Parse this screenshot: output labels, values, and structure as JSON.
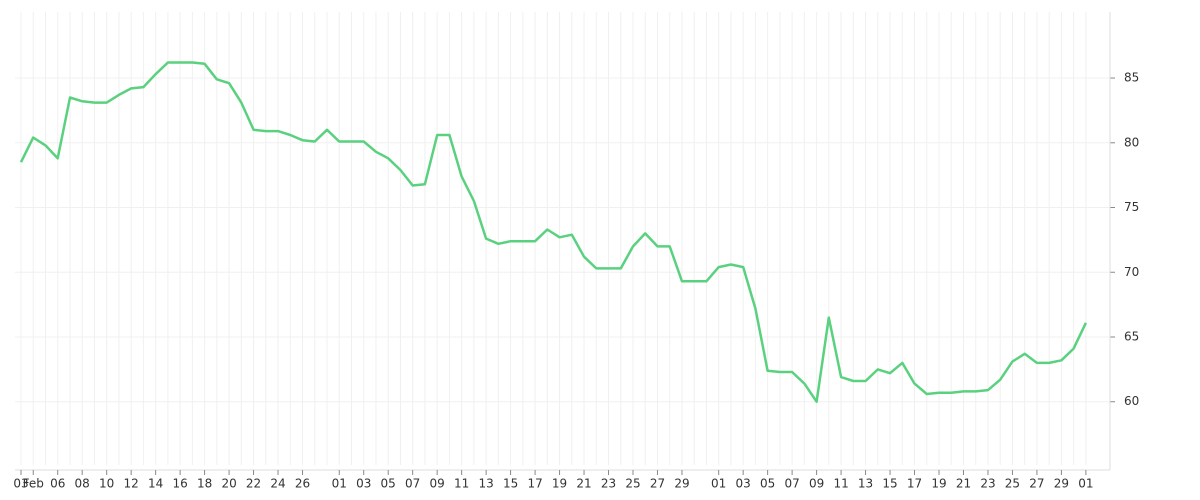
{
  "chart_data": {
    "type": "line",
    "categories": [
      "Feb 03",
      "Feb 04",
      "Feb 05",
      "Feb 06",
      "Feb 07",
      "Feb 08",
      "Feb 09",
      "Feb 10",
      "Feb 11",
      "Feb 12",
      "Feb 13",
      "Feb 14",
      "Feb 15",
      "Feb 16",
      "Feb 17",
      "Feb 18",
      "Feb 19",
      "Feb 20",
      "Feb 21",
      "Feb 22",
      "Feb 23",
      "Feb 24",
      "Feb 25",
      "Feb 26",
      "Feb 27",
      "Feb 28",
      "Mar 01",
      "Mar 02",
      "Mar 03",
      "Mar 04",
      "Mar 05",
      "Mar 06",
      "Mar 07",
      "Mar 08",
      "Mar 09",
      "Mar 10",
      "Mar 11",
      "Mar 12",
      "Mar 13",
      "Mar 14",
      "Mar 15",
      "Mar 16",
      "Mar 17",
      "Mar 18",
      "Mar 19",
      "Mar 20",
      "Mar 21",
      "Mar 22",
      "Mar 23",
      "Mar 24",
      "Mar 25",
      "Mar 26",
      "Mar 27",
      "Mar 28",
      "Mar 29",
      "Mar 30",
      "Mar 31",
      "Apr 01",
      "Apr 02",
      "Apr 03",
      "Apr 04",
      "Apr 05",
      "Apr 06",
      "Apr 07",
      "Apr 08",
      "Apr 09",
      "Apr 10",
      "Apr 11",
      "Apr 12",
      "Apr 13",
      "Apr 14",
      "Apr 15",
      "Apr 16",
      "Apr 17",
      "Apr 18",
      "Apr 19",
      "Apr 20",
      "Apr 21",
      "Apr 22",
      "Apr 23",
      "Apr 24",
      "Apr 25",
      "Apr 26",
      "Apr 27",
      "Apr 28",
      "Apr 29",
      "Apr 30",
      "May 01"
    ],
    "series": [
      {
        "color": "#5ad17f",
        "values": [
          78.5,
          80.4,
          79.8,
          78.8,
          83.5,
          83.2,
          83.1,
          83.1,
          83.7,
          84.2,
          84.3,
          85.3,
          86.2,
          86.2,
          86.2,
          86.1,
          84.9,
          84.6,
          83.1,
          81.0,
          80.9,
          80.9,
          80.6,
          80.2,
          80.1,
          81.0,
          80.1,
          80.1,
          80.1,
          79.3,
          78.8,
          77.9,
          76.7,
          76.8,
          80.6,
          80.6,
          77.4,
          75.5,
          72.6,
          72.2,
          72.4,
          72.4,
          72.4,
          73.3,
          72.7,
          72.9,
          71.2,
          70.3,
          70.3,
          70.3,
          72.0,
          73.0,
          72.0,
          72.0,
          69.3,
          69.3,
          69.3,
          70.4,
          70.6,
          70.4,
          67.2,
          62.4,
          62.3,
          62.3,
          61.4,
          60.0,
          66.5,
          61.9,
          61.6,
          61.6,
          62.5,
          62.2,
          63.0,
          61.4,
          60.6,
          60.7,
          60.7,
          60.8,
          60.8,
          60.9,
          61.7,
          63.1,
          63.7,
          63.0,
          63.0,
          63.2,
          64.1,
          66.1
        ]
      }
    ],
    "ylim": [
      55.5,
      90.1
    ],
    "yticks": [
      60,
      65,
      70,
      75,
      80,
      85
    ],
    "grid": true,
    "xticks": [
      {
        "value": "Feb 03",
        "label": "03"
      },
      {
        "value": "Feb 04",
        "label": "Feb"
      },
      {
        "value": "Feb 06",
        "label": "06"
      },
      {
        "value": "Feb 08",
        "label": "08"
      },
      {
        "value": "Feb 10",
        "label": "10"
      },
      {
        "value": "Feb 12",
        "label": "12"
      },
      {
        "value": "Feb 14",
        "label": "14"
      },
      {
        "value": "Feb 16",
        "label": "16"
      },
      {
        "value": "Feb 18",
        "label": "18"
      },
      {
        "value": "Feb 20",
        "label": "20"
      },
      {
        "value": "Feb 22",
        "label": "22"
      },
      {
        "value": "Feb 24",
        "label": "24"
      },
      {
        "value": "Feb 26",
        "label": "26"
      },
      {
        "value": "Mar 01",
        "label": "01"
      },
      {
        "value": "Mar 03",
        "label": "03"
      },
      {
        "value": "Mar 05",
        "label": "05"
      },
      {
        "value": "Mar 07",
        "label": "07"
      },
      {
        "value": "Mar 09",
        "label": "09"
      },
      {
        "value": "Mar 11",
        "label": "11"
      },
      {
        "value": "Mar 13",
        "label": "13"
      },
      {
        "value": "Mar 15",
        "label": "15"
      },
      {
        "value": "Mar 17",
        "label": "17"
      },
      {
        "value": "Mar 19",
        "label": "19"
      },
      {
        "value": "Mar 21",
        "label": "21"
      },
      {
        "value": "Mar 23",
        "label": "23"
      },
      {
        "value": "Mar 25",
        "label": "25"
      },
      {
        "value": "Mar 27",
        "label": "27"
      },
      {
        "value": "Mar 29",
        "label": "29"
      },
      {
        "value": "Apr 01",
        "label": "01"
      },
      {
        "value": "Apr 03",
        "label": "03"
      },
      {
        "value": "Apr 05",
        "label": "05"
      },
      {
        "value": "Apr 07",
        "label": "07"
      },
      {
        "value": "Apr 09",
        "label": "09"
      },
      {
        "value": "Apr 11",
        "label": "11"
      },
      {
        "value": "Apr 13",
        "label": "13"
      },
      {
        "value": "Apr 15",
        "label": "15"
      },
      {
        "value": "Apr 17",
        "label": "17"
      },
      {
        "value": "Apr 19",
        "label": "19"
      },
      {
        "value": "Apr 21",
        "label": "21"
      },
      {
        "value": "Apr 23",
        "label": "23"
      },
      {
        "value": "Apr 25",
        "label": "25"
      },
      {
        "value": "Apr 27",
        "label": "27"
      },
      {
        "value": "Apr 29",
        "label": "29"
      },
      {
        "value": "May 01",
        "label": "01"
      }
    ]
  }
}
